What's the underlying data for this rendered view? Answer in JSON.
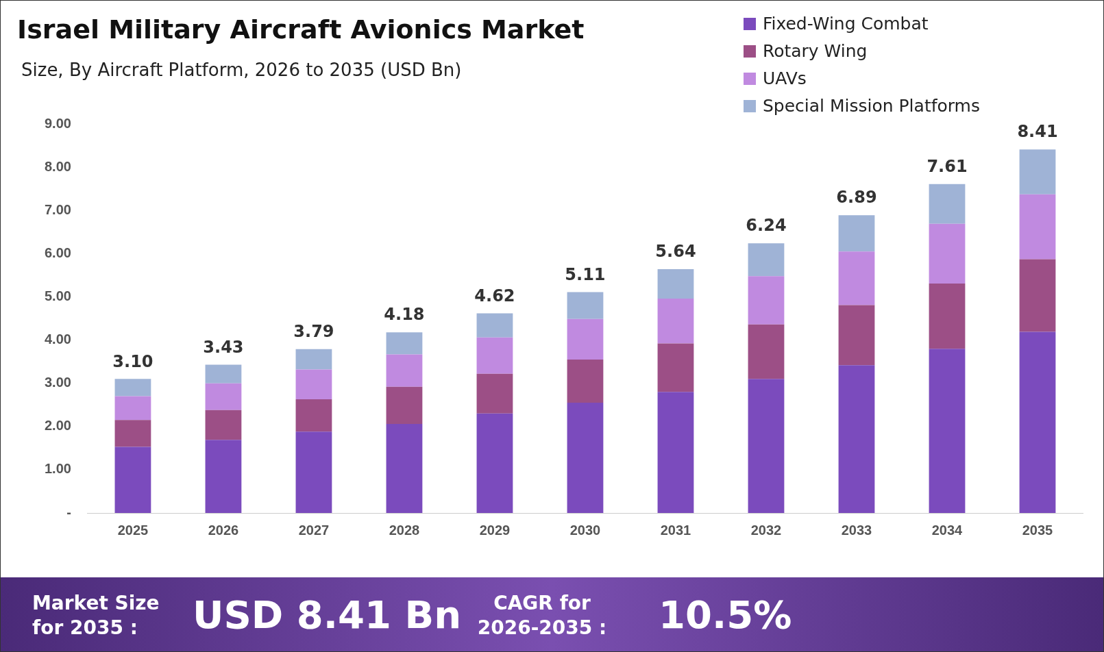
{
  "chart_data": {
    "type": "bar",
    "title": "Israel Military Aircraft Avionics Market",
    "subtitle": "Size, By Aircraft Platform, 2026 to 2035 (USD Bn)",
    "categories": [
      "2025",
      "2026",
      "2027",
      "2028",
      "2029",
      "2030",
      "2031",
      "2032",
      "2033",
      "2034",
      "2035"
    ],
    "series": [
      {
        "name": "Fixed-Wing Combat",
        "color": "#7b4bbd",
        "values": [
          1.53,
          1.69,
          1.88,
          2.06,
          2.3,
          2.55,
          2.8,
          3.1,
          3.42,
          3.8,
          4.19
        ]
      },
      {
        "name": "Rotary Wing",
        "color": "#9c4f86",
        "values": [
          0.62,
          0.69,
          0.75,
          0.86,
          0.92,
          1.0,
          1.12,
          1.26,
          1.39,
          1.51,
          1.68
        ]
      },
      {
        "name": "UAVs",
        "color": "#c08ae0",
        "values": [
          0.55,
          0.62,
          0.69,
          0.75,
          0.84,
          0.94,
          1.04,
          1.12,
          1.24,
          1.38,
          1.5
        ]
      },
      {
        "name": "Special Mission Platforms",
        "color": "#9fb3d6",
        "values": [
          0.4,
          0.43,
          0.47,
          0.51,
          0.56,
          0.62,
          0.68,
          0.76,
          0.84,
          0.92,
          1.04
        ]
      }
    ],
    "stacked": true,
    "totals": [
      "3.10",
      "3.43",
      "3.79",
      "4.18",
      "4.62",
      "5.11",
      "5.64",
      "6.24",
      "6.89",
      "7.61",
      "8.41"
    ],
    "ylim": [
      0,
      9
    ],
    "yticks": [
      {
        "value": 0,
        "label": "-"
      },
      {
        "value": 1,
        "label": "1.00"
      },
      {
        "value": 2,
        "label": "2.00"
      },
      {
        "value": 3,
        "label": "3.00"
      },
      {
        "value": 4,
        "label": "4.00"
      },
      {
        "value": 5,
        "label": "5.00"
      },
      {
        "value": 6,
        "label": "6.00"
      },
      {
        "value": 7,
        "label": "7.00"
      },
      {
        "value": 8,
        "label": "8.00"
      },
      {
        "value": 9,
        "label": "9.00"
      }
    ],
    "grid": false,
    "legend": "top right",
    "annotations": [
      "Market Size for 2035 :",
      "USD 8.41 Bn",
      "CAGR for 2026-2035 :",
      "10.5%"
    ]
  }
}
